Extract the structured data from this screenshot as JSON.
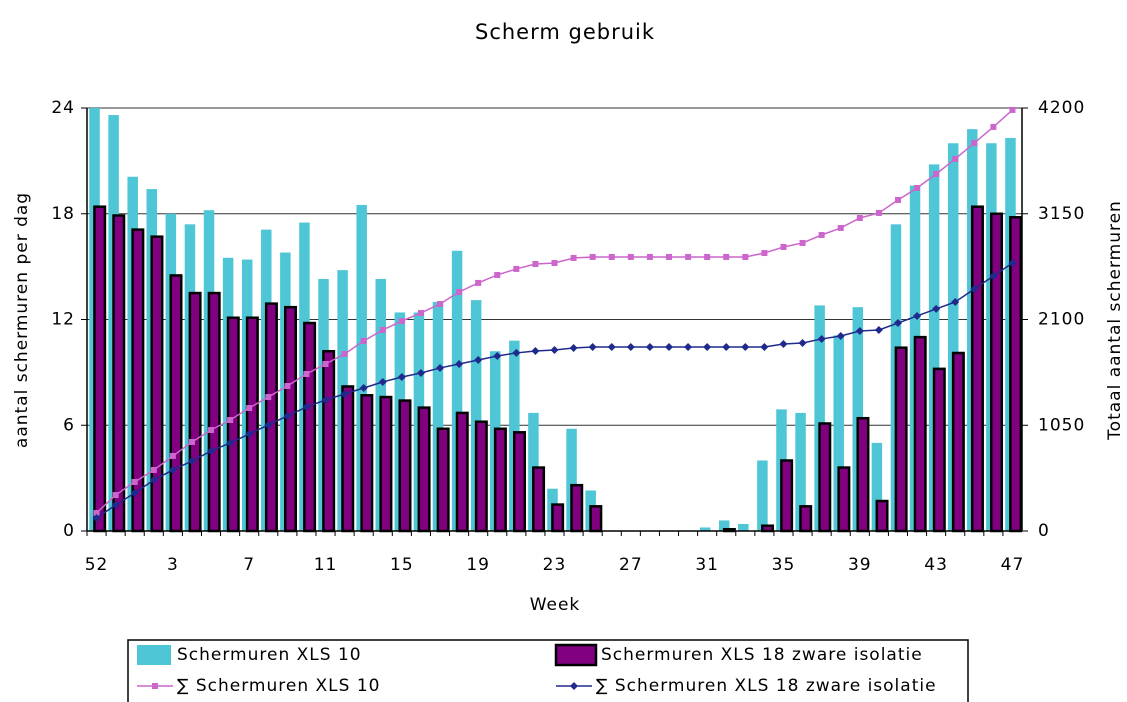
{
  "chart_data": {
    "type": "bar",
    "title": "Scherm gebruik",
    "x_label": "Week",
    "y_label": "aantal schermuren per dag",
    "y2_label": "Totaal aantal schermuren",
    "categories": [
      "52",
      null,
      null,
      null,
      "3",
      null,
      null,
      null,
      "7",
      null,
      null,
      null,
      "11",
      null,
      null,
      null,
      "15",
      null,
      null,
      null,
      "19",
      null,
      null,
      null,
      "23",
      null,
      null,
      null,
      "27",
      null,
      null,
      null,
      "31",
      null,
      null,
      null,
      "35",
      null,
      null,
      null,
      "39",
      null,
      null,
      null,
      "43",
      null,
      null,
      null,
      "47"
    ],
    "ylim": [
      0,
      24
    ],
    "yticks": [
      0,
      6,
      12,
      18,
      24
    ],
    "y2lim": [
      0,
      4200
    ],
    "y2ticks": [
      0,
      1050,
      2100,
      3150,
      4200
    ],
    "grid": true,
    "series": [
      {
        "name": "Schermuren XLS 10",
        "type": "bar",
        "color": "#4fc6d6",
        "values": [
          24,
          23.6,
          20.1,
          19.4,
          18,
          17.4,
          18.2,
          15.5,
          15.4,
          17.1,
          15.8,
          17.5,
          14.3,
          14.8,
          18.5,
          14.3,
          12.4,
          12.4,
          13,
          15.9,
          13.1,
          10.2,
          10.8,
          6.7,
          2.4,
          5.8,
          2.3,
          0,
          0,
          0,
          0,
          0,
          0.2,
          0.6,
          0.4,
          4,
          6.9,
          6.7,
          12.8,
          11.1,
          12.7,
          5,
          17.4,
          19.6,
          20.8,
          22,
          22.8,
          22,
          22.3
        ]
      },
      {
        "name": "Schermuren XLS 18 zware isolatie",
        "type": "bar",
        "color": "#800080",
        "values": [
          18.4,
          17.9,
          17.1,
          16.7,
          14.5,
          13.5,
          13.5,
          12.1,
          12.1,
          12.9,
          12.7,
          11.8,
          10.2,
          8.2,
          7.7,
          7.6,
          7.4,
          7,
          5.8,
          6.7,
          6.2,
          5.8,
          5.6,
          3.6,
          1.5,
          2.6,
          1.4,
          0,
          0,
          0,
          0,
          0,
          0,
          0.1,
          0,
          0.3,
          4,
          1.4,
          6.1,
          3.6,
          6.4,
          1.7,
          10.4,
          11,
          9.2,
          10.1,
          18.4,
          18,
          17.8
        ]
      },
      {
        "name": "∑ Schermuren XLS 10",
        "type": "line",
        "axis": "y2",
        "color": "#cc66cc",
        "values": [
          179,
          357,
          487,
          606,
          745,
          884,
          1003,
          1102,
          1221,
          1330,
          1440,
          1559,
          1658,
          1758,
          1887,
          1996,
          2085,
          2165,
          2254,
          2373,
          2463,
          2542,
          2602,
          2651,
          2661,
          2711,
          2721,
          2721,
          2721,
          2721,
          2721,
          2721,
          2721,
          2721,
          2721,
          2760,
          2820,
          2860,
          2939,
          3009,
          3108,
          3158,
          3287,
          3406,
          3545,
          3694,
          3853,
          4012,
          4181
        ]
      },
      {
        "name": "∑ Schermuren XLS 18 zware isolatie",
        "type": "line",
        "axis": "y2",
        "color": "#1f2a8c",
        "values": [
          129,
          258,
          377,
          506,
          606,
          695,
          794,
          874,
          963,
          1053,
          1142,
          1231,
          1301,
          1360,
          1420,
          1480,
          1529,
          1569,
          1619,
          1658,
          1698,
          1738,
          1768,
          1787,
          1797,
          1817,
          1827,
          1827,
          1827,
          1827,
          1827,
          1827,
          1827,
          1827,
          1827,
          1827,
          1857,
          1867,
          1907,
          1936,
          1986,
          1996,
          2065,
          2135,
          2205,
          2274,
          2403,
          2532,
          2661
        ]
      }
    ]
  }
}
